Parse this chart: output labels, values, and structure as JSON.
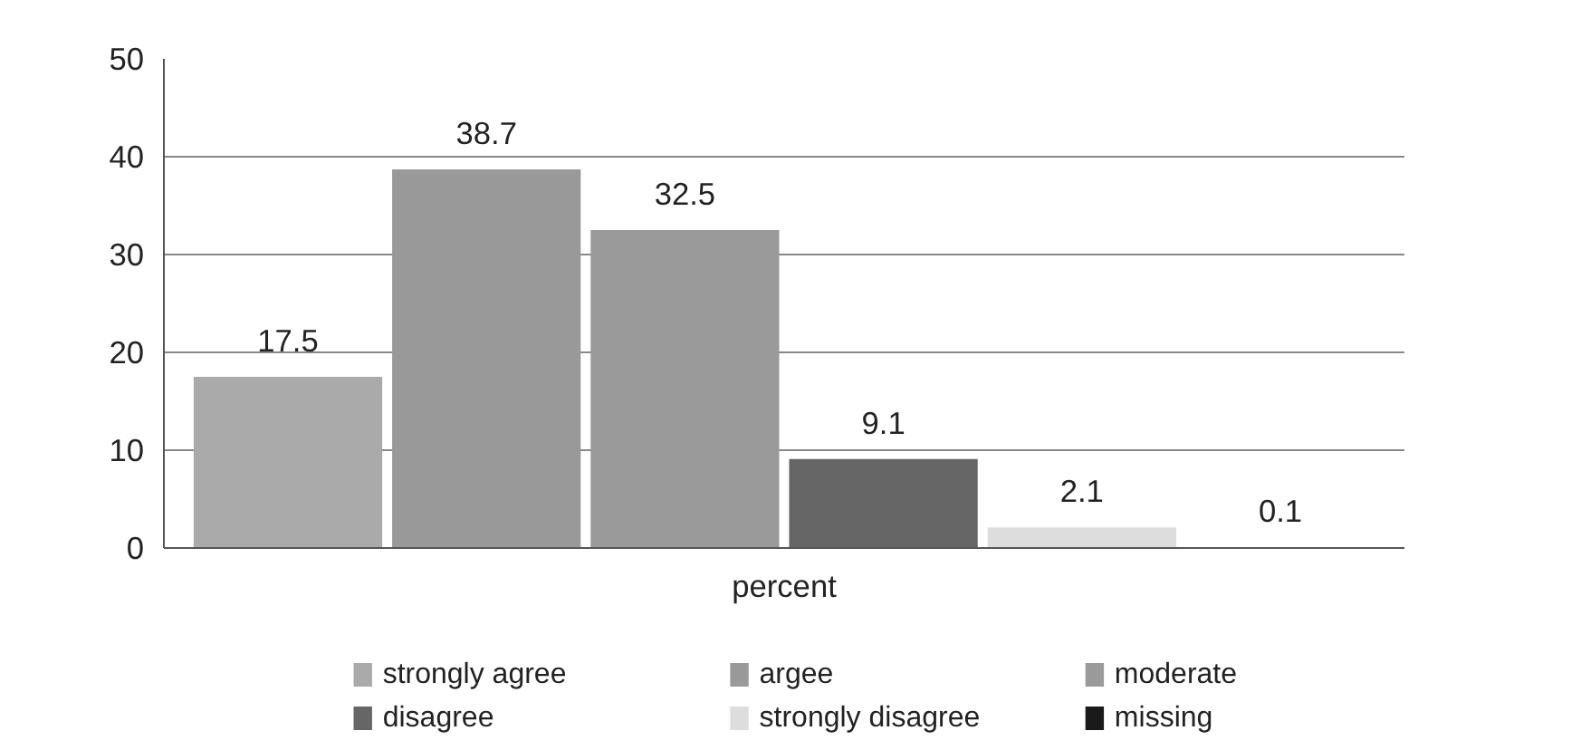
{
  "chart_data": {
    "type": "bar",
    "categories": [
      "percent"
    ],
    "series": [
      {
        "name": "strongly agree",
        "color": "#aaaaaa",
        "values": [
          17.5
        ]
      },
      {
        "name": "argee",
        "color": "#999999",
        "values": [
          38.7
        ]
      },
      {
        "name": "moderate",
        "color": "#9a9a9a",
        "values": [
          32.5
        ]
      },
      {
        "name": "disagree",
        "color": "#666666",
        "values": [
          9.1
        ]
      },
      {
        "name": "strongly disagree",
        "color": "#dddddd",
        "values": [
          2.1
        ]
      },
      {
        "name": "missing",
        "color": "#1a1a1a",
        "values": [
          0.1
        ]
      }
    ],
    "ylim": [
      0,
      50
    ],
    "yticks": [
      0,
      10,
      20,
      30,
      40,
      50
    ],
    "grid": "y",
    "legend": "bottom",
    "data_labels": true
  }
}
